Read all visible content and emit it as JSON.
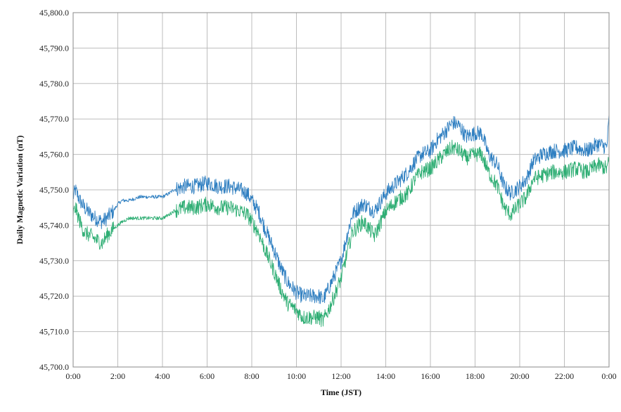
{
  "chart_data": {
    "type": "line",
    "title": "",
    "xlabel": "Time (JST)",
    "ylabel": "Daily Magnetic Variation (nT)",
    "xlim": [
      0,
      24
    ],
    "ylim": [
      45700,
      45800
    ],
    "x_ticks": [
      "0:00",
      "2:00",
      "4:00",
      "6:00",
      "8:00",
      "10:00",
      "12:00",
      "14:00",
      "16:00",
      "18:00",
      "20:00",
      "22:00",
      "0:00"
    ],
    "y_ticks": [
      "45,700.0",
      "45,710.0",
      "45,720.0",
      "45,730.0",
      "45,740.0",
      "45,750.0",
      "45,760.0",
      "45,770.0",
      "45,780.0",
      "45,790.0",
      "45,800.0"
    ],
    "grid": true,
    "legend": "none",
    "series": [
      {
        "color": "#2f7fc1",
        "x": [
          0,
          0.1,
          0.3,
          0.5,
          0.8,
          1.0,
          1.3,
          1.5,
          1.8,
          2.0,
          2.2,
          2.5,
          3.0,
          3.5,
          4.0,
          4.3,
          4.5,
          5.0,
          5.5,
          6.0,
          6.5,
          7.0,
          7.5,
          7.8,
          8.0,
          8.3,
          8.6,
          9.0,
          9.3,
          9.6,
          10.0,
          10.3,
          10.6,
          11.0,
          11.2,
          11.5,
          12.0,
          12.3,
          12.5,
          12.8,
          13.0,
          13.5,
          14.0,
          14.5,
          15.0,
          15.3,
          15.6,
          16.0,
          16.3,
          16.6,
          17.0,
          17.3,
          17.6,
          18.0,
          18.3,
          18.6,
          19.0,
          19.3,
          19.6,
          20.0,
          20.3,
          20.6,
          21.0,
          21.5,
          22.0,
          22.5,
          23.0,
          23.5,
          23.9,
          24.0
        ],
        "y": [
          45748,
          45750,
          45747,
          45745,
          45743,
          45742,
          45741,
          45742,
          45744,
          45746,
          45747,
          45747,
          45748,
          45748,
          45748,
          45749,
          45750,
          45751,
          45751,
          45752,
          45751,
          45751,
          45750,
          45749,
          45747,
          45744,
          45739,
          45733,
          45728,
          45724,
          45721,
          45720,
          45720,
          45720,
          45719,
          45723,
          45730,
          45738,
          45743,
          45745,
          45746,
          45744,
          45749,
          45752,
          45755,
          45758,
          45760,
          45761,
          45764,
          45766,
          45769,
          45768,
          45765,
          45766,
          45766,
          45760,
          45757,
          45751,
          45749,
          45751,
          45753,
          45758,
          45760,
          45761,
          45761,
          45762,
          45761,
          45763,
          45762,
          45770
        ]
      },
      {
        "color": "#2fae74",
        "x": [
          0,
          0.1,
          0.3,
          0.5,
          0.8,
          1.0,
          1.3,
          1.5,
          1.8,
          2.0,
          2.2,
          2.5,
          3.0,
          3.5,
          4.0,
          4.3,
          4.5,
          5.0,
          5.5,
          6.0,
          6.5,
          7.0,
          7.5,
          7.8,
          8.0,
          8.3,
          8.6,
          9.0,
          9.3,
          9.6,
          10.0,
          10.3,
          10.6,
          11.0,
          11.2,
          11.5,
          12.0,
          12.3,
          12.5,
          12.8,
          13.0,
          13.5,
          14.0,
          14.5,
          15.0,
          15.3,
          15.6,
          16.0,
          16.3,
          16.6,
          17.0,
          17.3,
          17.6,
          18.0,
          18.3,
          18.6,
          19.0,
          19.3,
          19.6,
          20.0,
          20.3,
          20.6,
          21.0,
          21.5,
          22.0,
          22.5,
          23.0,
          23.5,
          23.9,
          24.0
        ],
        "y": [
          45743,
          45745,
          45741,
          45738,
          45737,
          45736,
          45735,
          45737,
          45739,
          45740,
          45741,
          45742,
          45742,
          45742,
          45742,
          45743,
          45744,
          45745,
          45745,
          45746,
          45745,
          45745,
          45744,
          45743,
          45741,
          45738,
          45733,
          45727,
          45722,
          45718,
          45716,
          45714,
          45714,
          45714,
          45713,
          45717,
          45725,
          45733,
          45738,
          45740,
          45741,
          45737,
          45744,
          45747,
          45749,
          45753,
          45755,
          45756,
          45758,
          45760,
          45762,
          45761,
          45759,
          45760,
          45760,
          45755,
          45751,
          45745,
          45743,
          45746,
          45748,
          45753,
          45754,
          45755,
          45755,
          45756,
          45755,
          45757,
          45756,
          45758
        ]
      }
    ]
  }
}
